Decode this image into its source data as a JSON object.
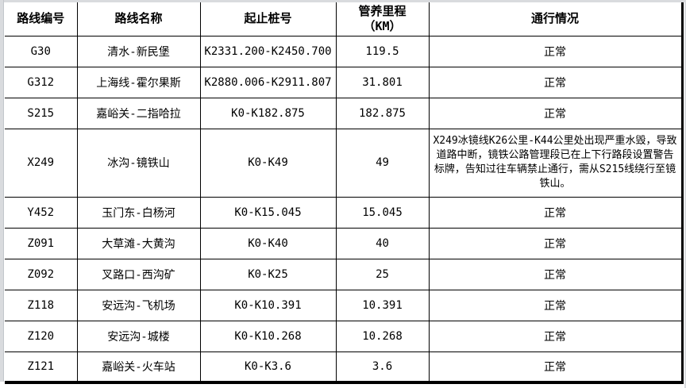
{
  "table": {
    "columns": [
      {
        "label": "路线编号"
      },
      {
        "label": "路线名称"
      },
      {
        "label": "起止桩号"
      },
      {
        "label": "管养里程\n（KM）"
      },
      {
        "label": "通行情况"
      }
    ],
    "rows": [
      {
        "code": "G30",
        "name": "清水-新民堡",
        "stakes": "K2331.200-K2450.700",
        "mileage": "119.5",
        "status": "正常"
      },
      {
        "code": "G312",
        "name": "上海线-霍尔果斯",
        "stakes": "K2880.006-K2911.807",
        "mileage": "31.801",
        "status": "正常"
      },
      {
        "code": "S215",
        "name": "嘉峪关-二指哈拉",
        "stakes": "K0-K182.875",
        "mileage": "182.875",
        "status": "正常"
      },
      {
        "code": "X249",
        "name": "冰沟-镜铁山",
        "stakes": "K0-K49",
        "mileage": "49",
        "status": "X249冰镜线K26公里-K44公里处出现严重水毁，导致道路中断，镜铁公路管理段已在上下行路段设置警告标牌，告知过往车辆禁止通行，需从S215线绕行至镜铁山。"
      },
      {
        "code": "Y452",
        "name": "玉门东-白杨河",
        "stakes": "K0-K15.045",
        "mileage": "15.045",
        "status": "正常"
      },
      {
        "code": "Z091",
        "name": "大草滩-大黄沟",
        "stakes": "K0-K40",
        "mileage": "40",
        "status": "正常"
      },
      {
        "code": "Z092",
        "name": "叉路口-西沟矿",
        "stakes": "K0-K25",
        "mileage": "25",
        "status": "正常"
      },
      {
        "code": "Z118",
        "name": "安远沟-飞机场",
        "stakes": "K0-K10.391",
        "mileage": "10.391",
        "status": "正常"
      },
      {
        "code": "Z120",
        "name": "安远沟-城楼",
        "stakes": "K0-K10.268",
        "mileage": "10.268",
        "status": "正常"
      },
      {
        "code": "Z121",
        "name": "嘉峪关-火车站",
        "stakes": "K0-K3.6",
        "mileage": "3.6",
        "status": "正常"
      }
    ],
    "normal_status_label": "正常"
  },
  "colors": {
    "border": "#000000",
    "background": "#ffffff",
    "edge_strip": "#d9dbde",
    "text": "#000000"
  }
}
